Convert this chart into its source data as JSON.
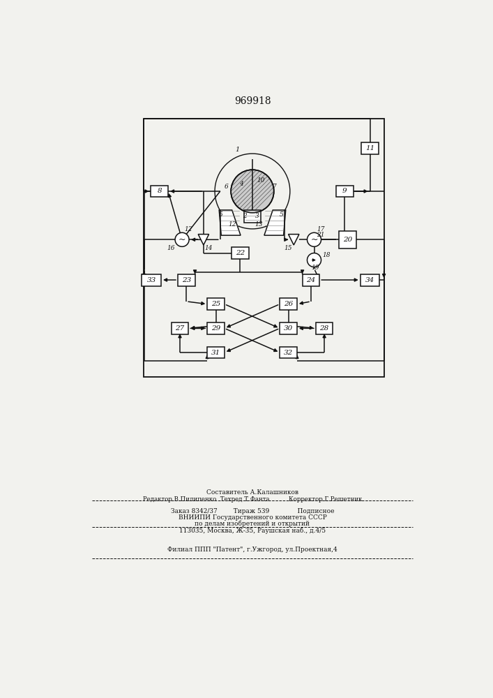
{
  "title": "969918",
  "bg_color": "#f2f2ee",
  "line_color": "#111111",
  "box_color": "#ffffff",
  "text_color": "#111111",
  "footer_lines": [
    "Составитель А.Калашников",
    "Редактор В.Пилипенко  Техред Т.Фанта          Корректор Г.Решетник",
    "Заказ 8342/37        Тираж 539              Подписное",
    "ВНИИПИ Государственного комитета СССР",
    "по делам изобретений и открытий",
    "113035, Москва, Ж-35, Раушская наб., д.4/5",
    "Филиал ППП \"Патент\", г.Ужгород, ул.Проектная,4"
  ]
}
